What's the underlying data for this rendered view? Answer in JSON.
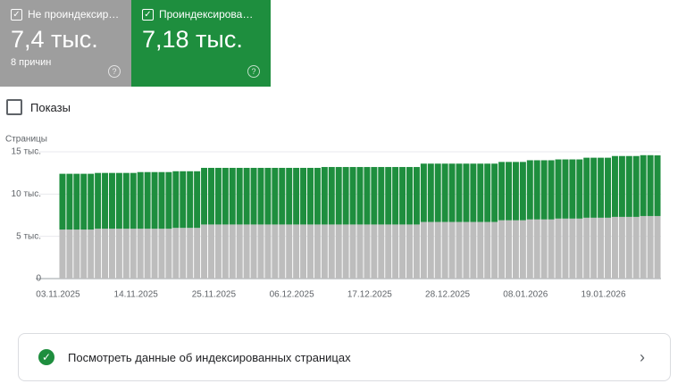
{
  "chart_data": {
    "type": "stacked-bar",
    "y_label": "Страницы",
    "categories": [
      "03.11.2025",
      null,
      null,
      null,
      null,
      null,
      null,
      null,
      null,
      null,
      null,
      "14.11.2025",
      null,
      null,
      null,
      null,
      null,
      null,
      null,
      null,
      null,
      null,
      "25.11.2025",
      null,
      null,
      null,
      null,
      null,
      null,
      null,
      null,
      null,
      null,
      "06.12.2025",
      null,
      null,
      null,
      null,
      null,
      null,
      null,
      null,
      null,
      null,
      "17.12.2025",
      null,
      null,
      null,
      null,
      null,
      null,
      null,
      null,
      null,
      null,
      "28.12.2025",
      null,
      null,
      null,
      null,
      null,
      null,
      null,
      null,
      null,
      null,
      "08.01.2026",
      null,
      null,
      null,
      null,
      null,
      null,
      null,
      null,
      null,
      null,
      "19.01.2026",
      null,
      null,
      null,
      null,
      null,
      null,
      null
    ],
    "series": [
      {
        "name": "Не проиндексир…",
        "color": "#bdbdbd",
        "card_color": "#9e9e9e",
        "summary_label": "7,4 тыс.",
        "summary_note": "8 причин",
        "values": [
          5800,
          5800,
          5800,
          5800,
          5800,
          5900,
          5900,
          5900,
          5900,
          5900,
          5900,
          5900,
          5900,
          5900,
          5900,
          5900,
          6000,
          6000,
          6000,
          6000,
          6400,
          6400,
          6400,
          6400,
          6400,
          6400,
          6400,
          6400,
          6400,
          6400,
          6400,
          6400,
          6400,
          6400,
          6400,
          6400,
          6400,
          6400,
          6400,
          6400,
          6400,
          6400,
          6400,
          6400,
          6400,
          6400,
          6400,
          6400,
          6400,
          6400,
          6400,
          6700,
          6700,
          6700,
          6700,
          6700,
          6700,
          6700,
          6700,
          6700,
          6700,
          6700,
          6900,
          6900,
          6900,
          6900,
          7000,
          7000,
          7000,
          7000,
          7100,
          7100,
          7100,
          7100,
          7200,
          7200,
          7200,
          7200,
          7300,
          7300,
          7300,
          7300,
          7400,
          7400,
          7400
        ]
      },
      {
        "name": "Проиндексирова…",
        "color": "#1e8e3e",
        "card_color": "#1e8e3e",
        "summary_label": "7,18 тыс.",
        "values": [
          6600,
          6600,
          6600,
          6600,
          6600,
          6600,
          6600,
          6600,
          6600,
          6600,
          6600,
          6700,
          6700,
          6700,
          6700,
          6700,
          6700,
          6700,
          6700,
          6700,
          6700,
          6700,
          6700,
          6700,
          6700,
          6700,
          6700,
          6700,
          6700,
          6700,
          6700,
          6700,
          6700,
          6700,
          6700,
          6700,
          6700,
          6800,
          6800,
          6800,
          6800,
          6800,
          6800,
          6800,
          6800,
          6800,
          6800,
          6800,
          6800,
          6800,
          6800,
          6900,
          6900,
          6900,
          6900,
          6900,
          6900,
          6900,
          6900,
          6900,
          6900,
          6900,
          6900,
          6900,
          6900,
          6900,
          7000,
          7000,
          7000,
          7000,
          7000,
          7000,
          7000,
          7000,
          7100,
          7100,
          7100,
          7100,
          7200,
          7200,
          7200,
          7200,
          7200,
          7200,
          7180
        ]
      }
    ],
    "ylim": [
      0,
      15000
    ],
    "yticks": [
      0,
      {
        "value": 5000,
        "label": "5 тыс."
      },
      {
        "value": 10000,
        "label": "10 тыс."
      },
      {
        "value": 15000,
        "label": "15 тыс."
      }
    ],
    "grid": true
  },
  "toggle": {
    "label": "Показы"
  },
  "link": {
    "label": "Посмотреть данные об индексированных страницах"
  }
}
